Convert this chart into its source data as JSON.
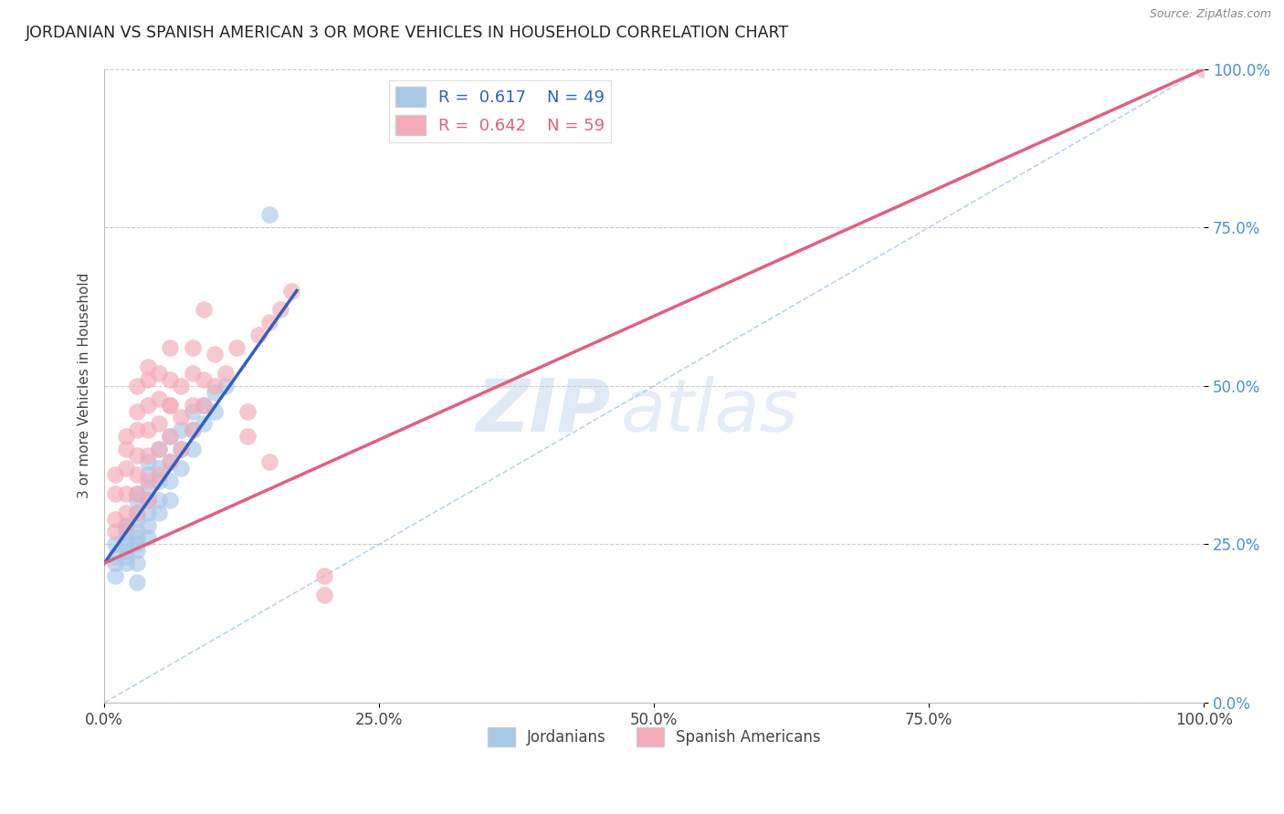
{
  "title": "JORDANIAN VS SPANISH AMERICAN 3 OR MORE VEHICLES IN HOUSEHOLD CORRELATION CHART",
  "source": "Source: ZipAtlas.com",
  "ylabel": "3 or more Vehicles in Household",
  "xlim": [
    0,
    1
  ],
  "ylim": [
    0,
    1
  ],
  "xtick_labels": [
    "0.0%",
    "25.0%",
    "50.0%",
    "75.0%",
    "100.0%"
  ],
  "xtick_vals": [
    0,
    0.25,
    0.5,
    0.75,
    1.0
  ],
  "ytick_labels": [
    "0.0%",
    "25.0%",
    "50.0%",
    "75.0%",
    "100.0%"
  ],
  "ytick_vals": [
    0,
    0.25,
    0.5,
    0.75,
    1.0
  ],
  "blue_color": "#a8c8e8",
  "pink_color": "#f4aab8",
  "blue_line_color": "#3060c0",
  "pink_line_color": "#e06080",
  "legend_blue_r": "R =  0.617",
  "legend_blue_n": "N = 49",
  "legend_pink_r": "R =  0.642",
  "legend_pink_n": "N = 59",
  "blue_label": "Jordanians",
  "pink_label": "Spanish Americans",
  "watermark_zip": "ZIP",
  "watermark_atlas": "atlas",
  "blue_scatter_x": [
    0.01,
    0.01,
    0.01,
    0.01,
    0.02,
    0.02,
    0.02,
    0.02,
    0.02,
    0.02,
    0.02,
    0.03,
    0.03,
    0.03,
    0.03,
    0.03,
    0.03,
    0.03,
    0.03,
    0.03,
    0.04,
    0.04,
    0.04,
    0.04,
    0.04,
    0.04,
    0.04,
    0.05,
    0.05,
    0.05,
    0.05,
    0.05,
    0.06,
    0.06,
    0.06,
    0.06,
    0.07,
    0.07,
    0.07,
    0.08,
    0.08,
    0.08,
    0.09,
    0.09,
    0.1,
    0.1,
    0.11,
    0.15,
    0.03
  ],
  "blue_scatter_y": [
    0.2,
    0.22,
    0.23,
    0.25,
    0.22,
    0.23,
    0.24,
    0.25,
    0.26,
    0.27,
    0.28,
    0.22,
    0.24,
    0.25,
    0.26,
    0.27,
    0.29,
    0.3,
    0.32,
    0.33,
    0.26,
    0.28,
    0.3,
    0.32,
    0.34,
    0.36,
    0.38,
    0.3,
    0.32,
    0.35,
    0.37,
    0.4,
    0.32,
    0.35,
    0.38,
    0.42,
    0.37,
    0.4,
    0.43,
    0.4,
    0.43,
    0.46,
    0.44,
    0.47,
    0.46,
    0.49,
    0.5,
    0.77,
    0.19
  ],
  "pink_scatter_x": [
    0.01,
    0.01,
    0.01,
    0.01,
    0.02,
    0.02,
    0.02,
    0.02,
    0.02,
    0.02,
    0.03,
    0.03,
    0.03,
    0.03,
    0.03,
    0.03,
    0.03,
    0.04,
    0.04,
    0.04,
    0.04,
    0.04,
    0.04,
    0.04,
    0.05,
    0.05,
    0.05,
    0.05,
    0.05,
    0.06,
    0.06,
    0.06,
    0.06,
    0.07,
    0.07,
    0.07,
    0.08,
    0.08,
    0.08,
    0.08,
    0.09,
    0.09,
    0.1,
    0.1,
    0.11,
    0.12,
    0.14,
    0.15,
    0.16,
    0.17,
    0.13,
    0.13,
    0.15,
    0.2,
    0.2,
    1.0,
    0.09,
    0.06,
    0.06
  ],
  "pink_scatter_y": [
    0.27,
    0.29,
    0.33,
    0.36,
    0.28,
    0.3,
    0.33,
    0.37,
    0.4,
    0.42,
    0.3,
    0.33,
    0.36,
    0.39,
    0.43,
    0.46,
    0.5,
    0.32,
    0.35,
    0.39,
    0.43,
    0.47,
    0.51,
    0.53,
    0.36,
    0.4,
    0.44,
    0.48,
    0.52,
    0.38,
    0.42,
    0.47,
    0.51,
    0.4,
    0.45,
    0.5,
    0.43,
    0.47,
    0.52,
    0.56,
    0.47,
    0.51,
    0.5,
    0.55,
    0.52,
    0.56,
    0.58,
    0.6,
    0.62,
    0.65,
    0.42,
    0.46,
    0.38,
    0.2,
    0.17,
    1.0,
    0.62,
    0.56,
    0.47
  ],
  "blue_trend_x": [
    0.0,
    0.175
  ],
  "blue_trend_y": [
    0.22,
    0.65
  ],
  "pink_trend_x": [
    0.0,
    1.0
  ],
  "pink_trend_y": [
    0.22,
    1.0
  ],
  "diag_line_x": [
    0.0,
    1.0
  ],
  "diag_line_y": [
    0.0,
    1.0
  ]
}
